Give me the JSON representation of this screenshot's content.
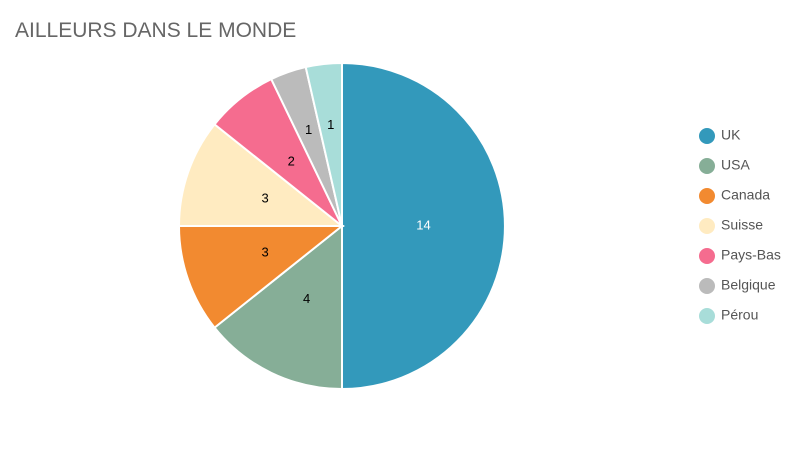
{
  "chart_data": {
    "type": "pie",
    "title": "AILLEURS DANS LE MONDE",
    "categories": [
      "UK",
      "USA",
      "Canada",
      "Suisse",
      "Pays-Bas",
      "Belgique",
      "Pérou"
    ],
    "values": [
      14,
      4,
      3,
      3,
      2,
      1,
      1
    ],
    "colors": [
      "#3399bb",
      "#86ae97",
      "#f28a30",
      "#ffebc1",
      "#f56c8f",
      "#bbbbbb",
      "#a8ddd9"
    ],
    "legend": "right"
  }
}
